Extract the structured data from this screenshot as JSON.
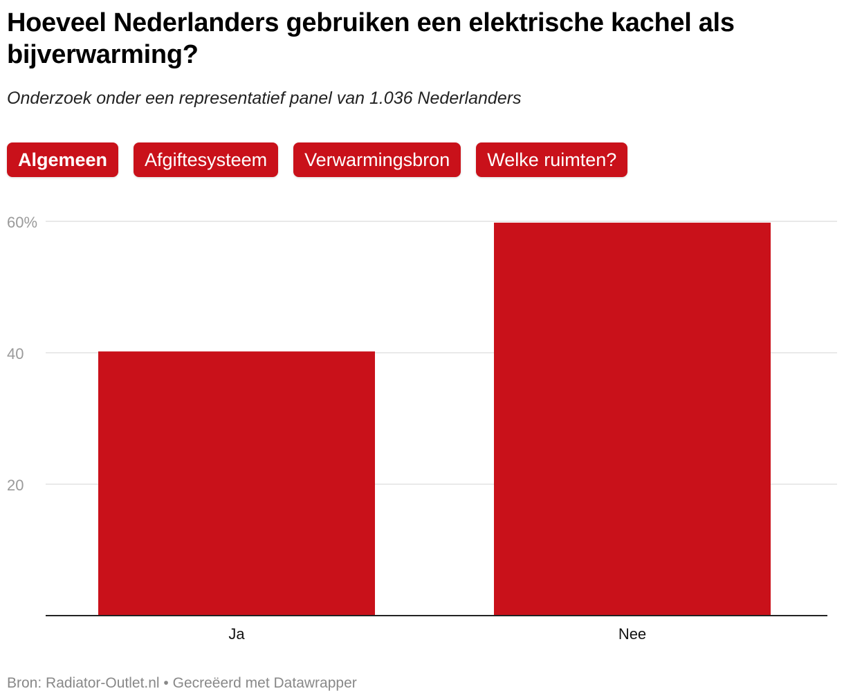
{
  "header": {
    "title": "Hoeveel Nederlanders gebruiken een elektrische kachel als bijverwarming?",
    "subtitle": "Onderzoek onder een representatief panel van 1.036 Nederlanders"
  },
  "tabs": [
    {
      "label": "Algemeen",
      "active": true
    },
    {
      "label": "Afgiftesysteem",
      "active": false
    },
    {
      "label": "Verwarmingsbron",
      "active": false
    },
    {
      "label": "Welke ruimten?",
      "active": false
    }
  ],
  "colors": {
    "bar": "#c9111a",
    "grid": "#e2e2e2",
    "axis": "#222222",
    "tick_label": "#9a9a9a"
  },
  "chart_data": {
    "type": "bar",
    "title": "Hoeveel Nederlanders gebruiken een elektrische kachel als bijverwarming?",
    "categories": [
      "Ja",
      "Nee"
    ],
    "values": [
      40.2,
      59.8
    ],
    "ylim": [
      0,
      60
    ],
    "yticks": [
      20,
      40,
      60
    ],
    "ytick_labels": [
      "20",
      "40",
      "60%"
    ],
    "xlabel": "",
    "ylabel": "",
    "grid": true
  },
  "footer": {
    "source": "Bron: Radiator-Outlet.nl • Gecreëerd met Datawrapper"
  }
}
